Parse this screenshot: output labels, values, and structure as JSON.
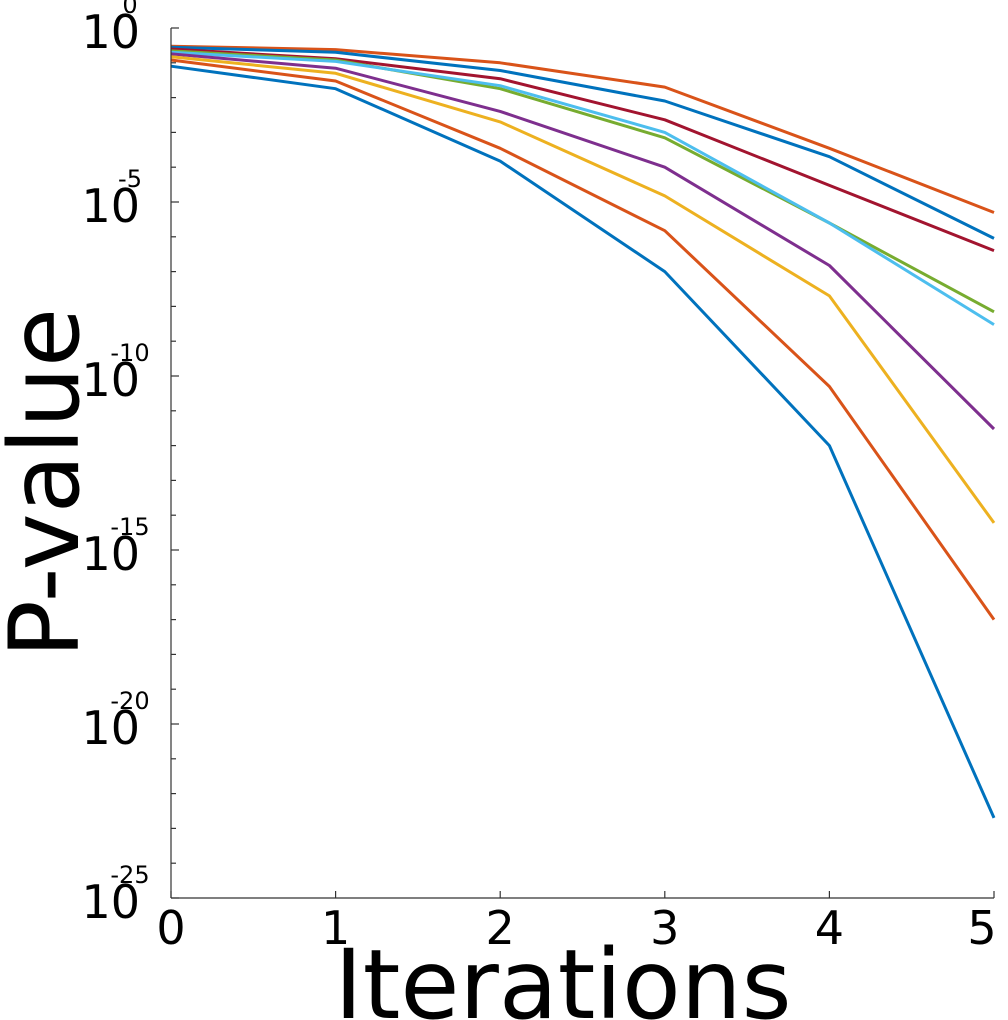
{
  "chart_data": {
    "type": "line",
    "xlabel": "Iterations",
    "ylabel": "P-value",
    "xlim": [
      0,
      5
    ],
    "ylim": [
      1e-25,
      1
    ],
    "yscale": "log",
    "grid": false,
    "x": [
      0,
      1,
      2,
      3,
      4,
      5
    ],
    "x_ticks": [
      "0",
      "1",
      "2",
      "3",
      "4",
      "5"
    ],
    "y_ticks": [
      {
        "value": 1,
        "base": "10",
        "exponent": "0"
      },
      {
        "value": 1e-05,
        "base": "10",
        "exponent": "-5"
      },
      {
        "value": 1e-10,
        "base": "10",
        "exponent": "-10"
      },
      {
        "value": 1e-15,
        "base": "10",
        "exponent": "-15"
      },
      {
        "value": 1e-20,
        "base": "10",
        "exponent": "-20"
      },
      {
        "value": 1e-25,
        "base": "10",
        "exponent": "-25"
      }
    ],
    "series": [
      {
        "color": "#D95319",
        "values": [
          0.3,
          0.24,
          0.1,
          0.02,
          0.00035,
          5e-06
        ]
      },
      {
        "color": "#0072BD",
        "values": [
          0.28,
          0.2,
          0.06,
          0.008,
          0.0002,
          9e-07
        ]
      },
      {
        "color": "#A2142F",
        "values": [
          0.25,
          0.13,
          0.035,
          0.0023,
          3e-05,
          4e-07
        ]
      },
      {
        "color": "#77AC30",
        "values": [
          0.22,
          0.12,
          0.018,
          0.0007,
          2.5e-06,
          7e-09
        ]
      },
      {
        "color": "#4DBEEE",
        "values": [
          0.2,
          0.11,
          0.022,
          0.001,
          2.5e-06,
          3e-09
        ]
      },
      {
        "color": "#7E2F8E",
        "values": [
          0.18,
          0.07,
          0.004,
          0.0001,
          1.5e-07,
          3e-12
        ]
      },
      {
        "color": "#EDB120",
        "values": [
          0.15,
          0.05,
          0.002,
          1.5e-05,
          2e-08,
          6e-15
        ]
      },
      {
        "color": "#D95319",
        "values": [
          0.12,
          0.03,
          0.00035,
          1.5e-06,
          5e-11,
          1e-17
        ]
      },
      {
        "color": "#0072BD",
        "values": [
          0.08,
          0.018,
          0.00015,
          1e-07,
          1e-12,
          2e-23
        ]
      }
    ]
  }
}
